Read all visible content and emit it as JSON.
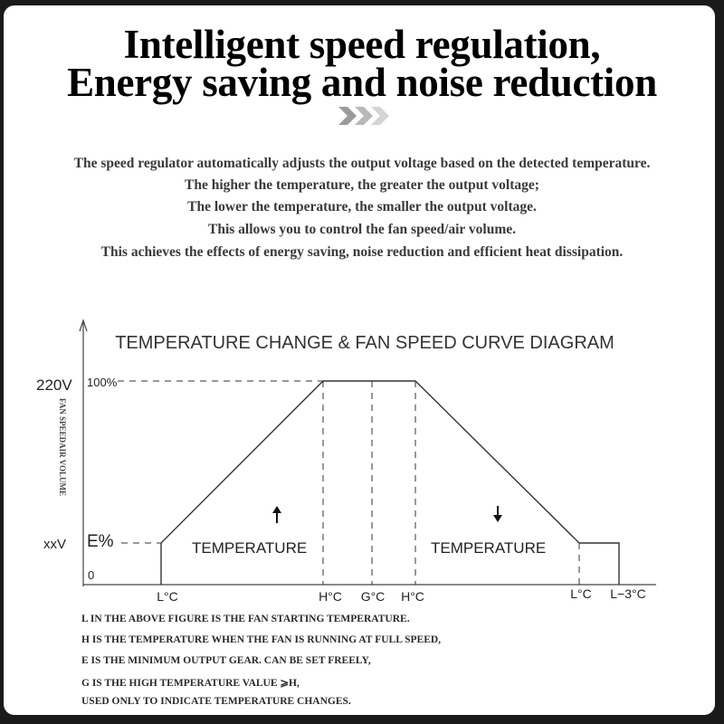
{
  "headline": {
    "line1": "Intelligent speed regulation,",
    "line2": "Energy saving and noise reduction"
  },
  "chevron_icon": "triple-chevron-right-icon",
  "description": [
    "The speed regulator automatically adjusts the output voltage based on the detected temperature.",
    "The higher the temperature, the greater the output voltage;",
    "The lower the temperature, the smaller the output voltage.",
    "This allows you to control the fan speed/air volume.",
    "This achieves the effects of energy saving, noise reduction and efficient heat dissipation."
  ],
  "diagram": {
    "title": "TEMPERATURE CHANGE & FAN SPEED CURVE DIAGRAM",
    "y_axis_label": "FAN SPEEDAIR VOLUME",
    "y_labels": {
      "max_voltage": "220V",
      "max_percent": "100%",
      "min_voltage": "xxV",
      "min_percent": "E%",
      "zero": "0"
    },
    "x_labels": [
      "L°C",
      "H°C",
      "G°C",
      "H°C",
      "L°C",
      "L−3°C"
    ],
    "rising": {
      "arrow_icon": "arrow-up-icon",
      "label": "TEMPERATURE"
    },
    "falling": {
      "arrow_icon": "arrow-down-icon",
      "label": "TEMPERATURE"
    }
  },
  "notes": [
    "L IN THE ABOVE FIGURE IS THE FAN STARTING TEMPERATURE.",
    "H IS THE TEMPERATURE WHEN THE FAN IS RUNNING AT FULL SPEED,",
    "E IS THE MINIMUM OUTPUT GEAR. CAN BE SET FREELY,",
    "G IS THE HIGH TEMPERATURE VALUE ⩾H,",
    "USED ONLY TO INDICATE TEMPERATURE CHANGES."
  ]
}
